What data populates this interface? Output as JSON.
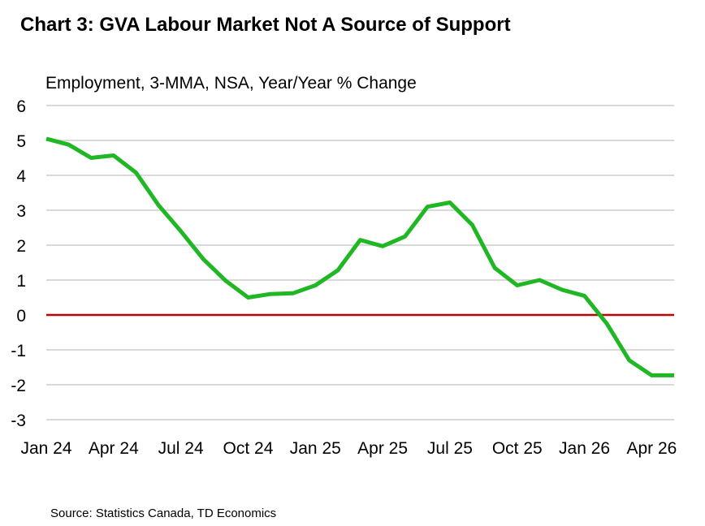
{
  "chart_data": {
    "type": "line",
    "title": "Chart 3: GVA Labour Market Not A Source of Support",
    "subtitle": "Employment, 3-MMA, NSA, Year/Year % Change",
    "xlabel": "",
    "ylabel": "",
    "ylim": [
      -3,
      6
    ],
    "yticks": [
      "6",
      "5",
      "4",
      "3",
      "2",
      "1",
      "0",
      "-1",
      "-2",
      "-3"
    ],
    "xticks": [
      "Jan 24",
      "Apr 24",
      "Jul 24",
      "Oct 24",
      "Jan 25",
      "Apr 25",
      "Jul 25",
      "Oct 25",
      "Jan 26",
      "Apr 26"
    ],
    "grid": true,
    "zero_line": true,
    "line_color": "#1fb723",
    "zero_line_color": "#c00000",
    "x": [
      "Jan 24",
      "Feb 24",
      "Mar 24",
      "Apr 24",
      "May 24",
      "Jun 24",
      "Jul 24",
      "Aug 24",
      "Sep 24",
      "Oct 24",
      "Nov 24",
      "Dec 24",
      "Jan 25",
      "Feb 25",
      "Mar 25",
      "Apr 25",
      "May 25",
      "Jun 25",
      "Jul 25",
      "Aug 25",
      "Sep 25",
      "Oct 25",
      "Nov 25",
      "Dec 25",
      "Jan 26",
      "Feb 26",
      "Mar 26",
      "Apr 26",
      "May 26"
    ],
    "series": [
      {
        "values": [
          5.05,
          4.88,
          4.5,
          4.57,
          4.08,
          3.15,
          2.4,
          1.6,
          0.98,
          0.5,
          0.6,
          0.62,
          0.85,
          1.28,
          2.15,
          1.97,
          2.25,
          3.1,
          3.22,
          2.58,
          1.35,
          0.85,
          1.0,
          0.72,
          0.55,
          -0.25,
          -1.3,
          -1.73,
          -1.73
        ]
      }
    ],
    "source": "Source: Statistics Canada, TD Economics"
  }
}
